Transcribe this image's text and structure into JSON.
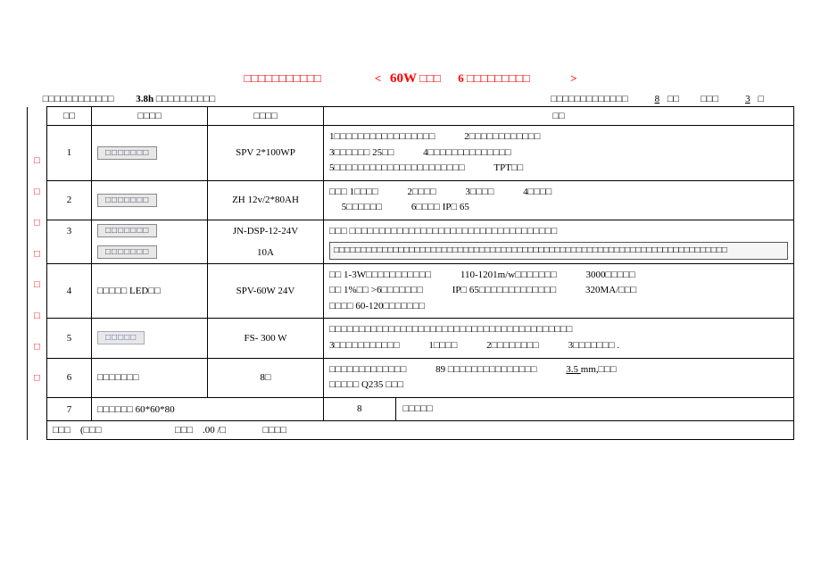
{
  "title": {
    "left": "□□□□□□□□□□□",
    "bracket_open": "<",
    "watt": "60W",
    "watt_suffix": "□□□",
    "qty": "6",
    "qty_suffix": "□□□□□□□□□",
    "bracket_close": ">"
  },
  "header": {
    "left_prefix": "□□□□□□□□□□□□",
    "hours": "3.8h",
    "left_suffix": "□□□□□□□□□□",
    "right_label": "□□□□□□□□□□□□□",
    "val1": "8",
    "val1_suffix": "□□",
    "val2_label": "□□□",
    "val2": "3",
    "val2_suffix": "□"
  },
  "cols": {
    "side": "□ □ □ □ □ □ □ □",
    "c1": "□□",
    "c2": "□□□□",
    "c3": "□□□□",
    "c4": "□□"
  },
  "rows": [
    {
      "n": "1",
      "name_pill": "□□□□□□□",
      "spec": "SPV 2*100WP",
      "desc_segs": [
        "1□□□□□□□□□□□□□□□□□",
        "2□□□□□□□□□□□□",
        "3□□□□□□        25□□",
        "4□□□□□□□□□□□□□□",
        "5□□□□□□□□□□□□□□□□□□□□□□",
        "TPT□□"
      ]
    },
    {
      "n": "2",
      "name_pill": "□□□□□□□",
      "spec": "ZH 12v/2*80AH",
      "desc_segs": [
        "□□□    1□□□□",
        "2□□□□",
        "3□□□□",
        "4□□□□",
        "5□□□□□□",
        "6□□□□      IP□ 65"
      ]
    },
    {
      "n": "3",
      "name_pill": "□□□□□□□",
      "spec": "JN-DSP-12-24V",
      "desc_top": "□□□    □□□□□□□□□□□□□□□□□□□□□□□□□□□□□□□□□□□",
      "desc_box": "□□□□□□□□□□□□□□□□□□□□□□□□□□□□□□□□□□□□□□□□□□□□□□□□□□□□□□□□□□□□□□□□□□□□□□□□□",
      "name_pill2": "□□□□□□□",
      "spec2": "10A"
    },
    {
      "n": "4",
      "name": "□□□□□      LED□□",
      "spec": "SPV-60W 24V",
      "desc_segs": [
        "□□    1-3W□□□□□□□□□□□",
        "110-1201m/w□□□□□□□",
        "3000□□□□□",
        "□□   1%□□  >6□□□□□□□",
        "IP□ 65□□□□□□□□□□□□□",
        "320MA/□□□",
        "□□□□    60-120□□□□□□□"
      ]
    },
    {
      "n": "5",
      "name_pill": "□□□□□",
      "spec": "FS- 300 W",
      "desc_segs": [
        "□□□□□□□□□□□□□□□□□□□□□□□□□□□□□□□□□□□□□□□□□",
        "3□□□□□□□□□□□",
        "1□□□□",
        "2□□□□□□□□",
        "3□□□□□□□      ."
      ]
    },
    {
      "n": "6",
      "name": "□□□□□□□",
      "spec": "8□",
      "desc_segs": [
        "□□□□□□□□□□□□□",
        "89 □□□□□□□□□□□□□□□",
        "<span class='ul'>   3.5    </span> mm,□□□",
        "□□□□□     Q235 □□□"
      ]
    },
    {
      "n": "7",
      "name": "□□□□□□       60*60*80",
      "spec": "8",
      "desc": "□□□□□"
    }
  ],
  "price": {
    "label1": "□□□",
    "label2": "(□□□",
    "label3": "□□□",
    "amount": ".00 /□",
    "label4": "□□□□"
  }
}
